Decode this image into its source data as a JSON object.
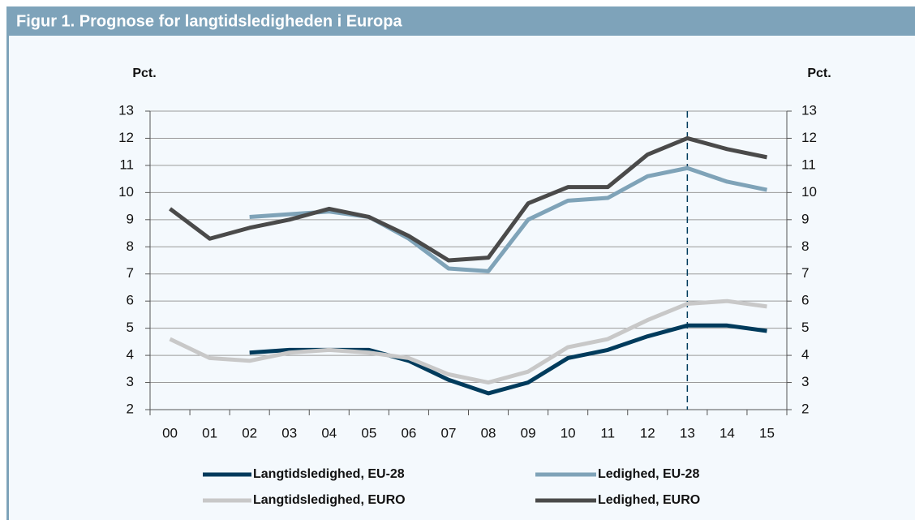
{
  "chart_data": {
    "type": "line",
    "title": "Figur 1. Prognose for langtidsledigheden i Europa",
    "ylabel": "Pct.",
    "y2label": "Pct.",
    "categories": [
      "00",
      "01",
      "02",
      "03",
      "04",
      "05",
      "06",
      "07",
      "08",
      "09",
      "10",
      "11",
      "12",
      "13",
      "14",
      "15"
    ],
    "series": [
      {
        "name": "Langtidsledighed, EU-28",
        "color": "#003b5c",
        "values": [
          null,
          null,
          4.1,
          4.2,
          4.2,
          4.2,
          3.8,
          3.1,
          2.6,
          3.0,
          3.9,
          4.2,
          4.7,
          5.1,
          5.1,
          4.9
        ]
      },
      {
        "name": "Ledighed, EU-28",
        "color": "#7fa3b8",
        "values": [
          null,
          null,
          9.1,
          9.2,
          9.3,
          9.1,
          8.3,
          7.2,
          7.1,
          9.0,
          9.7,
          9.8,
          10.6,
          10.9,
          10.4,
          10.1
        ]
      },
      {
        "name": "Langtidsledighed, EURO",
        "color": "#c8c8c8",
        "values": [
          4.6,
          3.9,
          3.8,
          4.1,
          4.2,
          4.1,
          3.9,
          3.3,
          3.0,
          3.4,
          4.3,
          4.6,
          5.3,
          5.9,
          6.0,
          5.8
        ]
      },
      {
        "name": "Ledighed, EURO",
        "color": "#4a4a4a",
        "values": [
          9.4,
          8.3,
          8.7,
          9.0,
          9.4,
          9.1,
          8.4,
          7.5,
          7.6,
          9.6,
          10.2,
          10.2,
          11.4,
          12.0,
          11.6,
          11.3
        ]
      }
    ],
    "ylim": [
      2,
      13
    ],
    "yticks": [
      2,
      3,
      4,
      5,
      6,
      7,
      8,
      9,
      10,
      11,
      12,
      13
    ],
    "y2lim": [
      2,
      13
    ],
    "y2ticks": [
      2,
      3,
      4,
      5,
      6,
      7,
      8,
      9,
      10,
      11,
      12,
      13
    ],
    "grid": true,
    "vline_category": "13"
  }
}
